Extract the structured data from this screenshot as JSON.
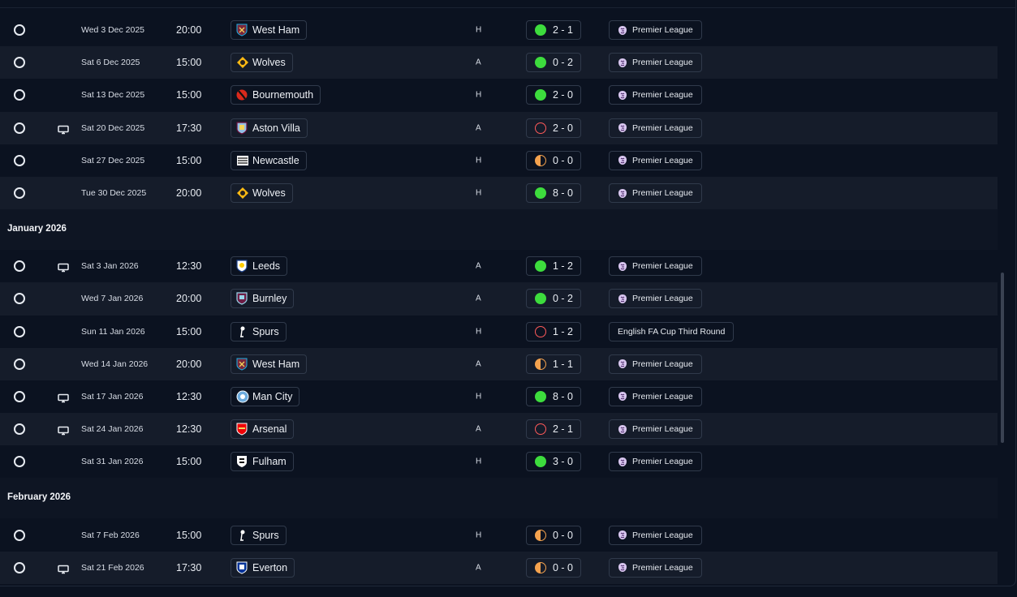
{
  "sections": [
    {
      "month": "",
      "rows": [
        {
          "date": "Wed 3 Dec 2025",
          "time": "20:00",
          "team": "West Ham",
          "crest": "westham",
          "venue": "H",
          "outcome": "win",
          "score": "2 - 1",
          "competition": "Premier League",
          "tv": false
        },
        {
          "date": "Sat 6 Dec 2025",
          "time": "15:00",
          "team": "Wolves",
          "crest": "wolves",
          "venue": "A",
          "outcome": "win",
          "score": "0 - 2",
          "competition": "Premier League",
          "tv": false
        },
        {
          "date": "Sat 13 Dec 2025",
          "time": "15:00",
          "team": "Bournemouth",
          "crest": "bournemouth",
          "venue": "H",
          "outcome": "win",
          "score": "2 - 0",
          "competition": "Premier League",
          "tv": false
        },
        {
          "date": "Sat 20 Dec 2025",
          "time": "17:30",
          "team": "Aston Villa",
          "crest": "villa",
          "venue": "A",
          "outcome": "loss",
          "score": "2 - 0",
          "competition": "Premier League",
          "tv": true
        },
        {
          "date": "Sat 27 Dec 2025",
          "time": "15:00",
          "team": "Newcastle",
          "crest": "newcastle",
          "venue": "H",
          "outcome": "draw",
          "score": "0 - 0",
          "competition": "Premier League",
          "tv": false
        },
        {
          "date": "Tue 30 Dec 2025",
          "time": "20:00",
          "team": "Wolves",
          "crest": "wolves",
          "venue": "H",
          "outcome": "win",
          "score": "8 - 0",
          "competition": "Premier League",
          "tv": false
        }
      ]
    },
    {
      "month": "January 2026",
      "rows": [
        {
          "date": "Sat 3 Jan 2026",
          "time": "12:30",
          "team": "Leeds",
          "crest": "leeds",
          "venue": "A",
          "outcome": "win",
          "score": "1 - 2",
          "competition": "Premier League",
          "tv": true
        },
        {
          "date": "Wed 7 Jan 2026",
          "time": "20:00",
          "team": "Burnley",
          "crest": "burnley",
          "venue": "A",
          "outcome": "win",
          "score": "0 - 2",
          "competition": "Premier League",
          "tv": false
        },
        {
          "date": "Sun 11 Jan 2026",
          "time": "15:00",
          "team": "Spurs",
          "crest": "spurs",
          "venue": "H",
          "outcome": "loss",
          "score": "1 - 2",
          "competition": "English FA Cup Third Round",
          "tv": false
        },
        {
          "date": "Wed 14 Jan 2026",
          "time": "20:00",
          "team": "West Ham",
          "crest": "westham",
          "venue": "A",
          "outcome": "draw",
          "score": "1 - 1",
          "competition": "Premier League",
          "tv": false
        },
        {
          "date": "Sat 17 Jan 2026",
          "time": "12:30",
          "team": "Man City",
          "crest": "mancity",
          "venue": "H",
          "outcome": "win",
          "score": "8 - 0",
          "competition": "Premier League",
          "tv": true
        },
        {
          "date": "Sat 24 Jan 2026",
          "time": "12:30",
          "team": "Arsenal",
          "crest": "arsenal",
          "venue": "A",
          "outcome": "loss",
          "score": "2 - 1",
          "competition": "Premier League",
          "tv": true
        },
        {
          "date": "Sat 31 Jan 2026",
          "time": "15:00",
          "team": "Fulham",
          "crest": "fulham",
          "venue": "H",
          "outcome": "win",
          "score": "3 - 0",
          "competition": "Premier League",
          "tv": false
        }
      ]
    },
    {
      "month": "February 2026",
      "rows": [
        {
          "date": "Sat 7 Feb 2026",
          "time": "15:00",
          "team": "Spurs",
          "crest": "spurs",
          "venue": "H",
          "outcome": "draw",
          "score": "0 - 0",
          "competition": "Premier League",
          "tv": false
        },
        {
          "date": "Sat 21 Feb 2026",
          "time": "17:30",
          "team": "Everton",
          "crest": "everton",
          "venue": "A",
          "outcome": "draw",
          "score": "0 - 0",
          "competition": "Premier League",
          "tv": true
        }
      ]
    }
  ],
  "icons": {
    "status": "empty-circle-icon",
    "tv": "tv-icon",
    "competition": "premier-league-lion-icon"
  },
  "colors": {
    "win": "#3ddc3d",
    "loss": "#ff5a5a",
    "draw": "#f4a24e",
    "background": "#0b1220",
    "row_alt": "#151c2a"
  }
}
